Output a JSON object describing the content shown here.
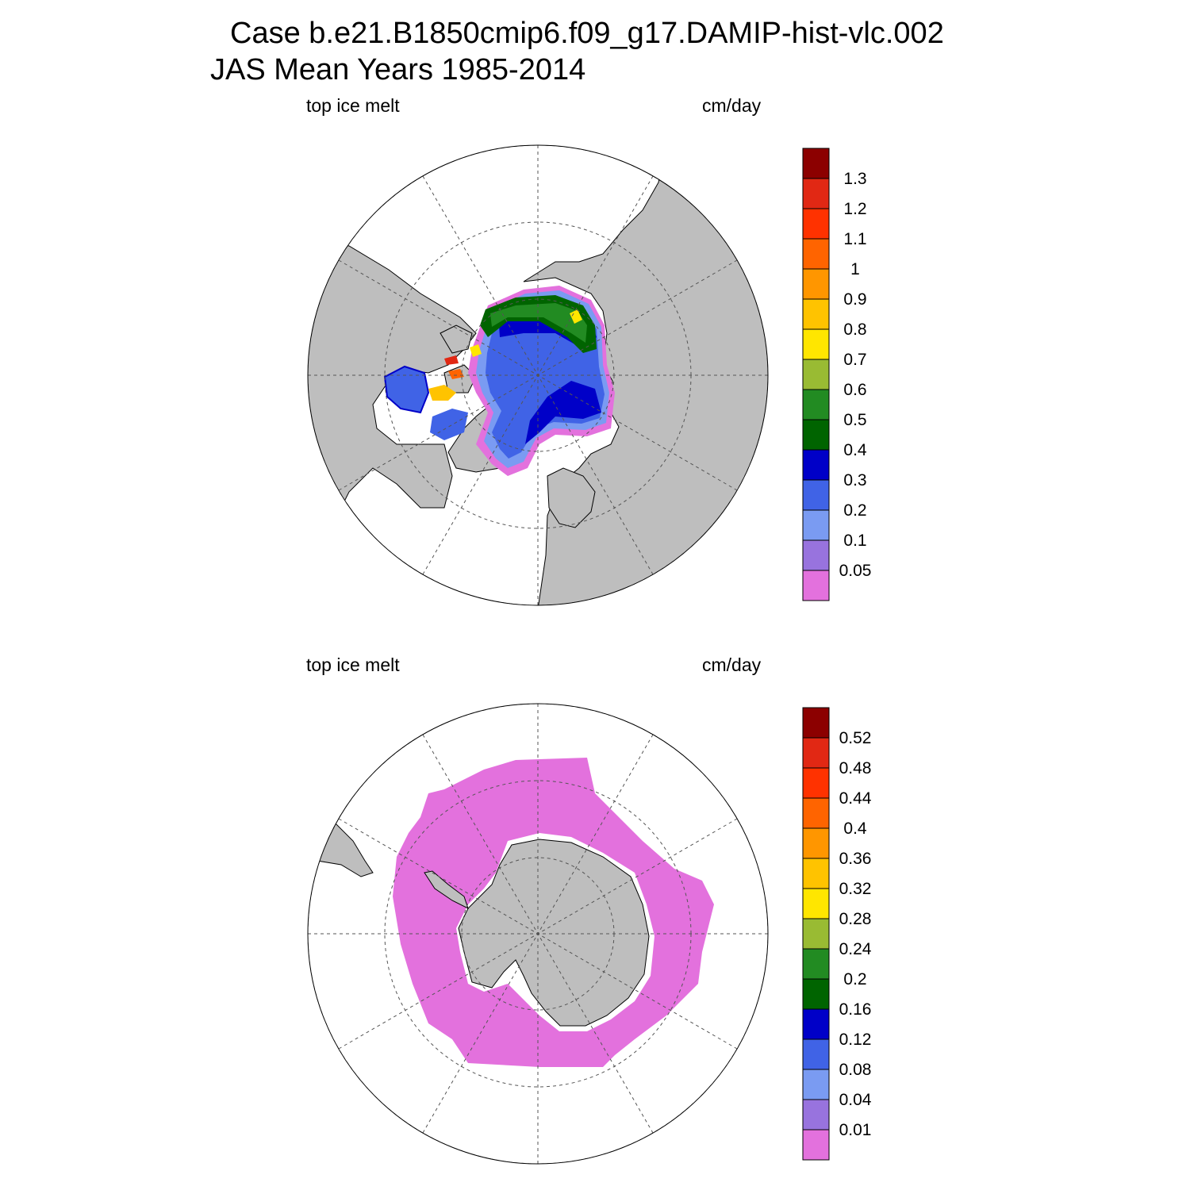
{
  "title": {
    "line1": "Case b.e21.B1850cmip6.f09_g17.DAMIP-hist-vlc.002",
    "line2": "JAS Mean   Years 1985-2014"
  },
  "colors": {
    "land": "#bebebe",
    "background": "#ffffff",
    "colorbar": [
      "#e371dd",
      "#9873de",
      "#7a9bf2",
      "#4063e6",
      "#0000c8",
      "#006400",
      "#228b22",
      "#99bb33",
      "#ffe600",
      "#ffc300",
      "#ff9600",
      "#ff6400",
      "#ff3200",
      "#e12814",
      "#8c0000"
    ]
  },
  "panels": [
    {
      "id": "north",
      "left_label": "top ice melt",
      "right_label": "cm/day",
      "hemisphere": "Northern Hemisphere polar stereographic",
      "colorbar_levels": [
        "0.05",
        "0.1",
        "0.2",
        "0.3",
        "0.4",
        "0.5",
        "0.6",
        "0.7",
        "0.8",
        "0.9",
        "1",
        "1.1",
        "1.2",
        "1.3"
      ]
    },
    {
      "id": "south",
      "left_label": "top ice melt",
      "right_label": "cm/day",
      "hemisphere": "Southern Hemisphere polar stereographic",
      "colorbar_levels": [
        "0.01",
        "0.04",
        "0.08",
        "0.12",
        "0.16",
        "0.2",
        "0.24",
        "0.28",
        "0.32",
        "0.36",
        "0.4",
        "0.44",
        "0.48",
        "0.52"
      ]
    }
  ]
}
